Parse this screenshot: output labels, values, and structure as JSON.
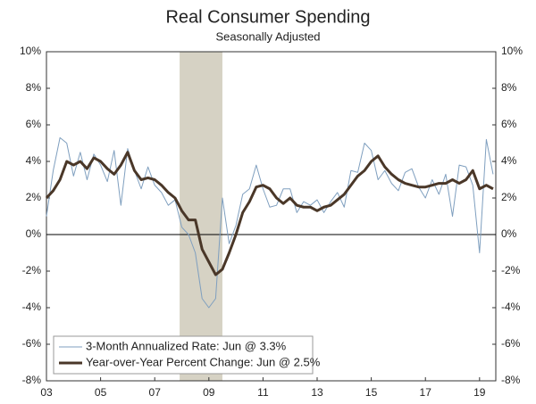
{
  "chart_data": {
    "type": "line",
    "title": "Real Consumer Spending",
    "subtitle": "Seasonally Adjusted",
    "x": [
      2003,
      2003.25,
      2003.5,
      2003.75,
      2004,
      2004.25,
      2004.5,
      2004.75,
      2005,
      2005.25,
      2005.5,
      2005.75,
      2006,
      2006.25,
      2006.5,
      2006.75,
      2007,
      2007.25,
      2007.5,
      2007.75,
      2008,
      2008.25,
      2008.5,
      2008.75,
      2009,
      2009.25,
      2009.5,
      2009.75,
      2010,
      2010.25,
      2010.5,
      2010.75,
      2011,
      2011.25,
      2011.5,
      2011.75,
      2012,
      2012.25,
      2012.5,
      2012.75,
      2013,
      2013.25,
      2013.5,
      2013.75,
      2014,
      2014.25,
      2014.5,
      2014.75,
      2015,
      2015.25,
      2015.5,
      2015.75,
      2016,
      2016.25,
      2016.5,
      2016.75,
      2017,
      2017.25,
      2017.5,
      2017.75,
      2018,
      2018.25,
      2018.5,
      2018.75,
      2019,
      2019.25,
      2019.5
    ],
    "series": [
      {
        "name": "3-Month Annualized Rate: Jun @ 3.3%",
        "color": "#7f9fbf",
        "width": 1,
        "values": [
          1.0,
          3.5,
          5.3,
          5.0,
          3.2,
          4.5,
          3.0,
          4.4,
          3.8,
          2.9,
          4.6,
          1.6,
          4.7,
          3.5,
          2.5,
          3.7,
          2.7,
          2.3,
          1.6,
          1.9,
          0.4,
          0.0,
          -1.0,
          -3.5,
          -4.0,
          -3.5,
          2.0,
          -0.5,
          0.5,
          2.2,
          2.5,
          3.8,
          2.5,
          1.5,
          1.6,
          2.5,
          2.5,
          1.2,
          1.8,
          1.6,
          1.9,
          1.2,
          1.8,
          2.3,
          1.5,
          3.5,
          3.4,
          5.0,
          4.6,
          3.0,
          3.5,
          2.8,
          2.4,
          3.4,
          3.6,
          2.6,
          2.0,
          3.0,
          2.2,
          3.3,
          1.0,
          3.8,
          3.7,
          2.7,
          -1.0,
          5.2,
          3.3
        ]
      },
      {
        "name": "Year-over-Year Percent Change: Jun @ 2.5%",
        "color": "#4a3728",
        "width": 3,
        "values": [
          2.0,
          2.4,
          3.0,
          4.0,
          3.8,
          4.0,
          3.6,
          4.2,
          4.0,
          3.6,
          3.3,
          3.8,
          4.5,
          3.5,
          3.0,
          3.1,
          3.0,
          2.7,
          2.3,
          2.0,
          1.3,
          0.8,
          0.8,
          -0.8,
          -1.5,
          -2.2,
          -1.9,
          -1.0,
          0.0,
          1.2,
          1.8,
          2.6,
          2.7,
          2.5,
          2.0,
          1.7,
          2.0,
          1.6,
          1.5,
          1.5,
          1.3,
          1.5,
          1.6,
          1.9,
          2.2,
          2.7,
          3.2,
          3.5,
          4.0,
          4.3,
          3.7,
          3.3,
          3.0,
          2.8,
          2.7,
          2.6,
          2.6,
          2.7,
          2.8,
          2.8,
          3.0,
          2.8,
          3.0,
          3.5,
          2.5,
          2.7,
          2.5
        ]
      }
    ],
    "recession": [
      2007.92,
      2009.5
    ],
    "xlim": [
      2003,
      2019.6
    ],
    "xticks": [
      {
        "value": 2003,
        "label": "03"
      },
      {
        "value": 2005,
        "label": "05"
      },
      {
        "value": 2007,
        "label": "07"
      },
      {
        "value": 2009,
        "label": "09"
      },
      {
        "value": 2011,
        "label": "11"
      },
      {
        "value": 2013,
        "label": "13"
      },
      {
        "value": 2015,
        "label": "15"
      },
      {
        "value": 2017,
        "label": "17"
      },
      {
        "value": 2019,
        "label": "19"
      }
    ],
    "ylim": [
      -8,
      10
    ],
    "yticks": [
      {
        "value": -8,
        "label": "-8%"
      },
      {
        "value": -6,
        "label": "-6%"
      },
      {
        "value": -4,
        "label": "-4%"
      },
      {
        "value": -2,
        "label": "-2%"
      },
      {
        "value": 0,
        "label": "0%"
      },
      {
        "value": 2,
        "label": "2%"
      },
      {
        "value": 4,
        "label": "4%"
      },
      {
        "value": 6,
        "label": "6%"
      },
      {
        "value": 8,
        "label": "8%"
      },
      {
        "value": 10,
        "label": "10%"
      }
    ],
    "legend": "lower left"
  }
}
